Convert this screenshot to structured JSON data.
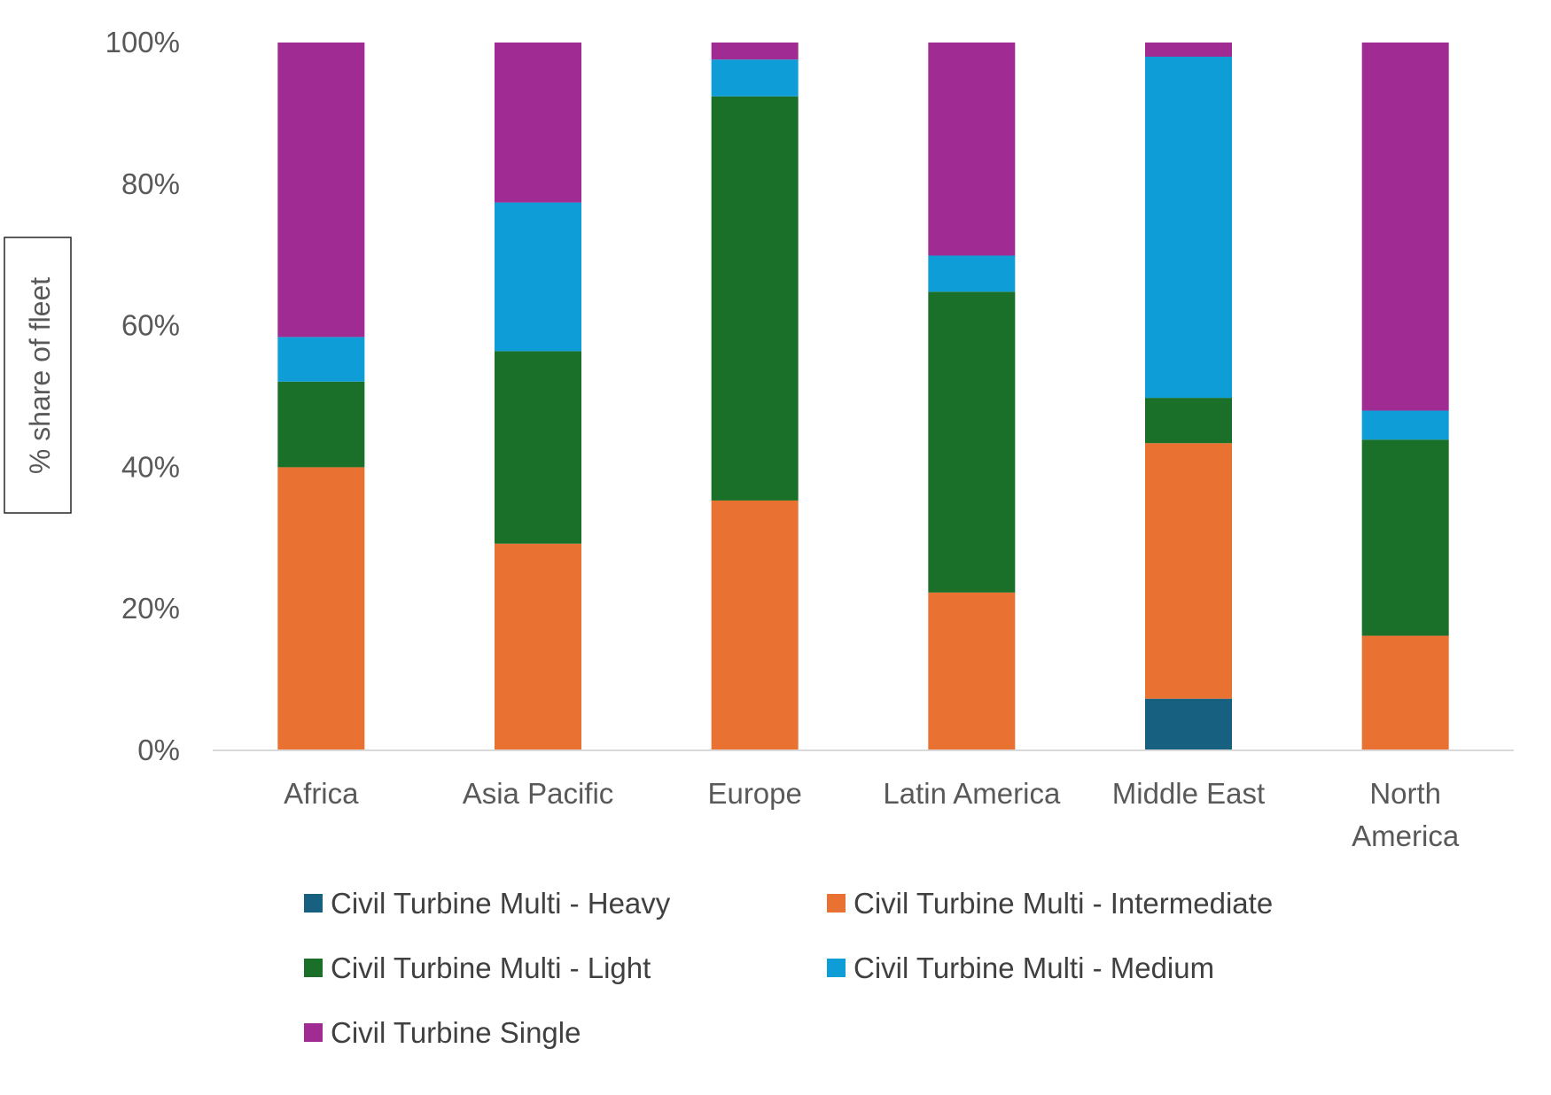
{
  "chart_data": {
    "type": "bar",
    "stacked": true,
    "ylabel": "% share of fleet",
    "ylim": [
      0,
      100
    ],
    "y_ticks": [
      {
        "value": 0,
        "label": "0%"
      },
      {
        "value": 20,
        "label": "20%"
      },
      {
        "value": 40,
        "label": "40%"
      },
      {
        "value": 60,
        "label": "60%"
      },
      {
        "value": 80,
        "label": "80%"
      },
      {
        "value": 100,
        "label": "100%"
      }
    ],
    "categories": [
      [
        "Africa"
      ],
      [
        "Asia Pacific"
      ],
      [
        "Europe"
      ],
      [
        "Latin America"
      ],
      [
        "Middle East"
      ],
      [
        "North",
        "America"
      ]
    ],
    "series": [
      {
        "name": "Civil Turbine Multi - Heavy",
        "color": "#17607f",
        "values": [
          0,
          0,
          0,
          0,
          7.3,
          0
        ]
      },
      {
        "name": "Civil Turbine Multi - Intermediate",
        "color": "#e97132",
        "values": [
          40,
          29.2,
          35.3,
          22.3,
          36.1,
          16.2
        ]
      },
      {
        "name": "Civil Turbine Multi - Light",
        "color": "#1a7028",
        "values": [
          12.1,
          27.2,
          57.1,
          42.5,
          6.4,
          27.7
        ]
      },
      {
        "name": "Civil Turbine Multi - Medium",
        "color": "#0f9dd8",
        "values": [
          6.3,
          21,
          5.2,
          5.1,
          48.2,
          4.1
        ]
      },
      {
        "name": "Civil Turbine Single",
        "color": "#a02b93",
        "values": [
          41.6,
          22.6,
          2.4,
          30.1,
          2,
          52
        ]
      }
    ],
    "legend_position": "bottom",
    "grid": false
  }
}
